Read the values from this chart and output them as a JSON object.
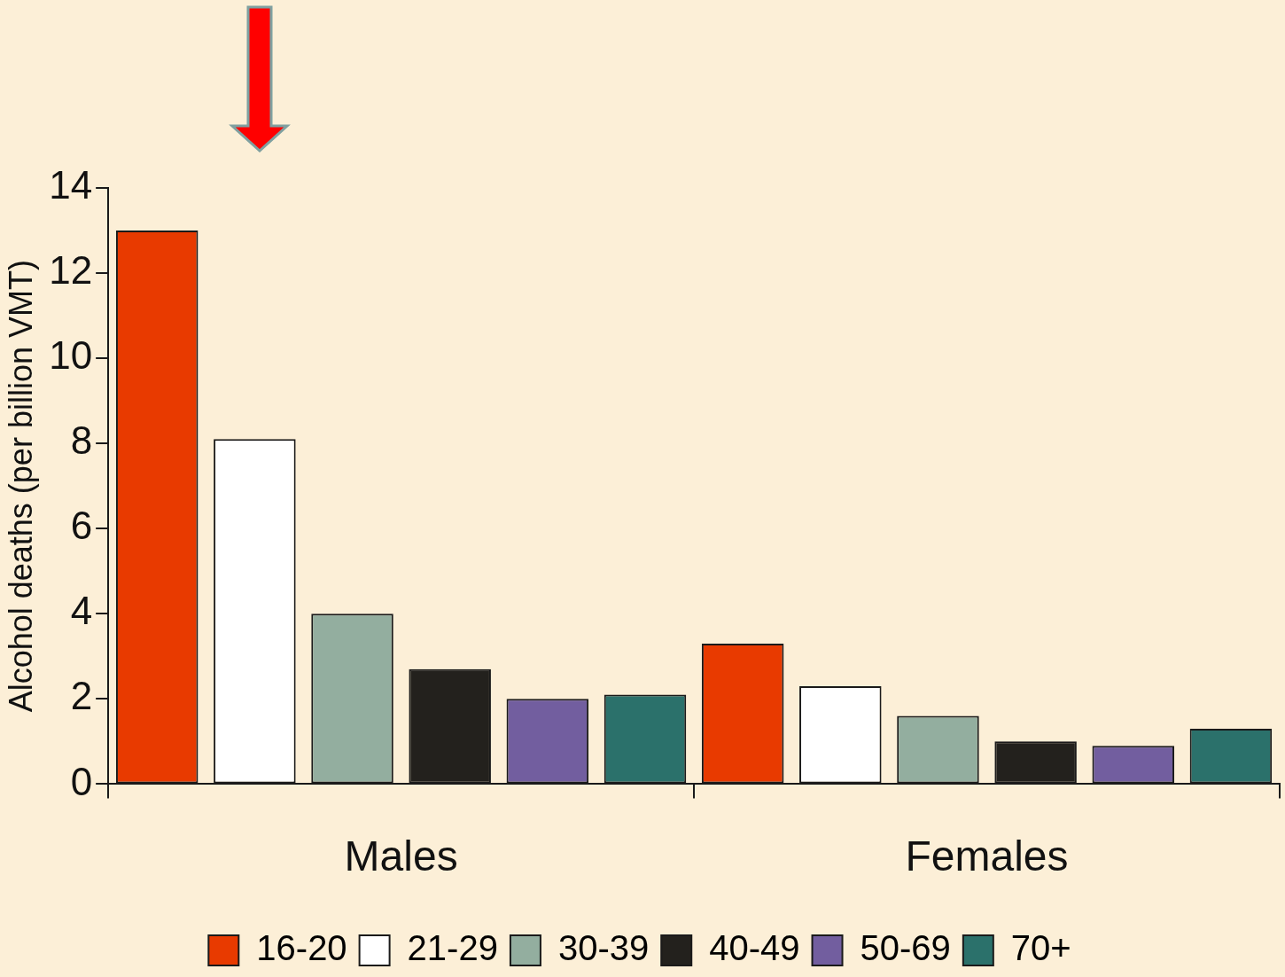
{
  "chart_data": {
    "type": "bar",
    "ylabel": "Alcohol deaths (per billion VMT)",
    "categories": [
      "Males",
      "Females"
    ],
    "series": [
      {
        "name": "16-20",
        "color": "#e83a00",
        "values": [
          13.0,
          3.3
        ]
      },
      {
        "name": "21-29",
        "color": "#ffffff",
        "values": [
          8.1,
          2.3
        ]
      },
      {
        "name": "30-39",
        "color": "#93ae9f",
        "values": [
          4.0,
          1.6
        ]
      },
      {
        "name": "40-49",
        "color": "#23211d",
        "values": [
          2.7,
          1.0
        ]
      },
      {
        "name": "50-69",
        "color": "#725e9f",
        "values": [
          2.0,
          0.9
        ]
      },
      {
        "name": "70+",
        "color": "#2b716b",
        "values": [
          2.1,
          1.3
        ]
      }
    ],
    "ylim": [
      0,
      14
    ],
    "yticks": [
      0,
      2,
      4,
      6,
      8,
      10,
      12,
      14
    ],
    "grid": false,
    "legend": "bottom"
  }
}
